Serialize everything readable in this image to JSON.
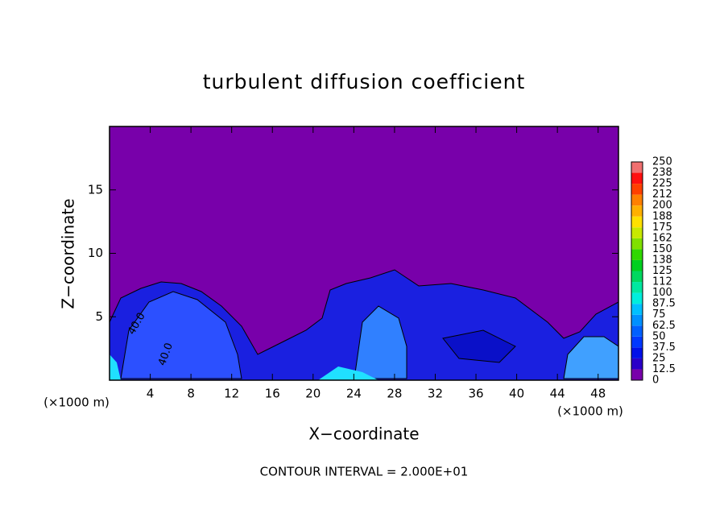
{
  "chart_data": {
    "type": "contour",
    "title": "turbulent diffusion coefficient",
    "x_label": "X−coordinate",
    "y_label": "Z−coordinate",
    "x_unit": "(×1000 m)",
    "footer": "CONTOUR INTERVAL = 2.000E+01",
    "xlim": [
      0,
      50
    ],
    "xticks": [
      4,
      8,
      12,
      16,
      20,
      24,
      28,
      32,
      36,
      40,
      44,
      48
    ],
    "ylim": [
      0,
      20
    ],
    "yticks": [
      5,
      10,
      15
    ],
    "contour_labels": [
      "40.0",
      "40.0"
    ],
    "colorbar": {
      "levels": [
        0,
        12.5,
        25,
        37.5,
        50,
        62.5,
        75,
        87.5,
        100,
        {
          "value": 112.5,
          "label": "112"
        },
        {
          "value": 125,
          "label": "125"
        },
        {
          "value": 137.5,
          "label": "138"
        },
        150,
        {
          "value": 162.5,
          "label": "162"
        },
        175,
        {
          "value": 187.5,
          "label": "188"
        },
        200,
        {
          "value": 212.5,
          "label": "212"
        },
        225,
        {
          "value": 237.5,
          "label": "238"
        },
        250
      ],
      "colors": [
        "#7800aa",
        "#2a00c8",
        "#0010e8",
        "#0038ff",
        "#0060ff",
        "#0090ff",
        "#00c0ff",
        "#00eedd",
        "#00e8a0",
        "#00d860",
        "#00d020",
        "#30d800",
        "#80e000",
        "#c8e800",
        "#ffe000",
        "#ffb000",
        "#ff8000",
        "#ff4000",
        "#ff1010",
        "#f07070"
      ]
    }
  }
}
